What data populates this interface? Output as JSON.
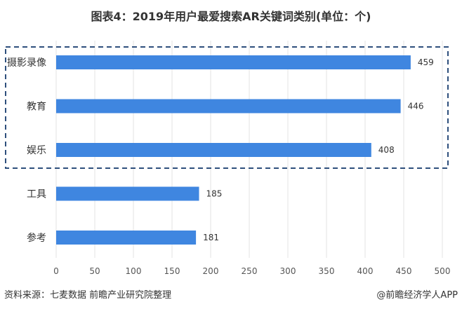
{
  "chart_data": {
    "type": "bar",
    "orientation": "horizontal",
    "title": "图表4：2019年用户最爱搜索AR关键词类别(单位：个)",
    "categories": [
      "摄影录像",
      "教育",
      "娱乐",
      "工具",
      "参考"
    ],
    "values": [
      459,
      446,
      408,
      185,
      181
    ],
    "xlim": [
      0,
      500
    ],
    "xticks": [
      0,
      50,
      100,
      150,
      200,
      250,
      300,
      350,
      400,
      450,
      500
    ],
    "grid": true,
    "bar_color": "#3f86e0",
    "highlight_box": {
      "categories": [
        "摄影录像",
        "教育",
        "娱乐"
      ],
      "color": "#2e4f7c",
      "style": "dashed"
    }
  },
  "footer": {
    "source": "资料来源：七麦数据 前瞻产业研究院整理",
    "credit": "@前瞻经济学人APP"
  }
}
